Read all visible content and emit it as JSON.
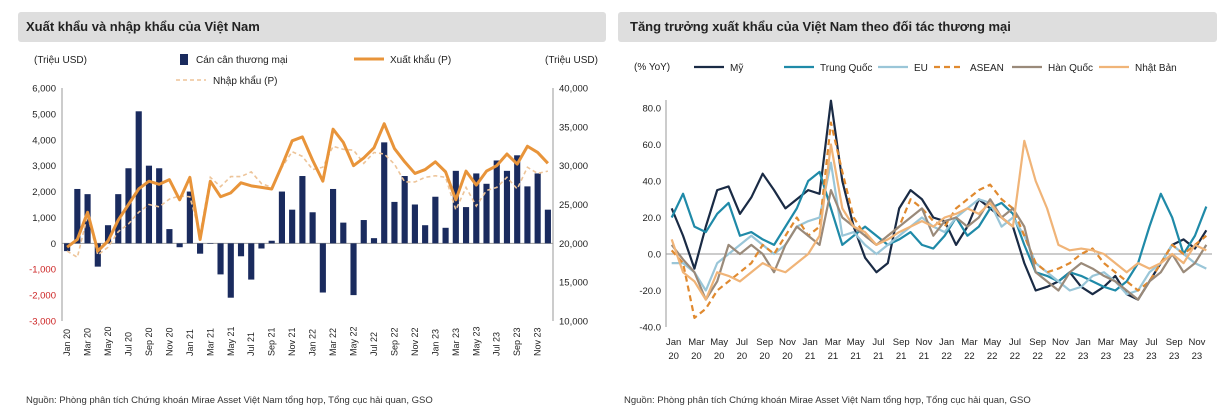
{
  "panels": {
    "left": {
      "title": "Xuất khẩu và nhập khẩu của Việt Nam",
      "source": "Nguồn: Phòng phân tích Chứng khoán Mirae Asset Việt Nam tổng hợp, Tổng cục hải quan, GSO"
    },
    "right": {
      "title": "Tăng trưởng xuất khẩu của Việt Nam theo đối tác thương mại",
      "source": "Nguồn: Phòng phân tích Chứng khoán Mirae Asset Việt Nam tổng hợp, Tổng cục hải quan, GSO"
    }
  },
  "chart_data": [
    {
      "type": "bar",
      "title": "Xuất khẩu và nhập khẩu của Việt Nam",
      "ylabel_left": "(Triệu USD)",
      "ylabel_right": "(Triệu USD)",
      "ylim_left": [
        -3000,
        6000
      ],
      "ylim_right": [
        10000,
        40000
      ],
      "yticks_left": [
        "6,000",
        "5,000",
        "4,000",
        "3,000",
        "2,000",
        "1,000",
        "0",
        "-1,000",
        "-2,000",
        "-3,000"
      ],
      "yticks_right": [
        "40,000",
        "35,000",
        "30,000",
        "25,000",
        "20,000",
        "15,000",
        "10,000"
      ],
      "x_tick_labels": [
        "Jan 20",
        "Mar 20",
        "May 20",
        "Jul 20",
        "Sep 20",
        "Nov 20",
        "Jan 21",
        "Mar 21",
        "May 21",
        "Jul 21",
        "Sep 21",
        "Nov 21",
        "Jan 22",
        "Mar 22",
        "May 22",
        "Jul 22",
        "Sep 22",
        "Nov 22",
        "Jan 23",
        "Mar 23",
        "May 23",
        "Jul 23",
        "Sep 23",
        "Nov 23"
      ],
      "legend": [
        "Cán cân thương mại",
        "Xuất khẩu (P)",
        "Nhập khẩu (P)"
      ],
      "colors": {
        "balance": "#1a2b5e",
        "export": "#e8943a",
        "import": "#edc499",
        "axis_neg": "#cc2222"
      },
      "series": [
        {
          "name": "Cán cân thương mại",
          "kind": "bar",
          "axis": "left",
          "values": [
            -300,
            2100,
            1900,
            -900,
            700,
            1900,
            2900,
            5100,
            3000,
            2900,
            550,
            -150,
            2000,
            -400,
            0,
            -1200,
            -2100,
            -500,
            -1400,
            -200,
            100,
            2000,
            1300,
            2600,
            1200,
            -1900,
            2100,
            800,
            -2000,
            900,
            200,
            3900,
            1600,
            2600,
            1500,
            700,
            1800,
            600,
            2800,
            1400,
            2700,
            2300,
            3200,
            2800,
            3400,
            2200,
            2700,
            1300
          ]
        },
        {
          "name": "Xuất khẩu (P)",
          "kind": "line",
          "axis": "right",
          "values": [
            19500,
            20500,
            24000,
            19000,
            20300,
            23000,
            25000,
            27000,
            28000,
            27600,
            28200,
            25600,
            28500,
            20500,
            28000,
            26000,
            26500,
            27800,
            27400,
            27200,
            27000,
            30000,
            33200,
            33700,
            30700,
            28000,
            34700,
            33000,
            30000,
            31000,
            32300,
            35400,
            32200,
            30500,
            29000,
            29500,
            30500,
            29200,
            25600,
            29300,
            27500,
            29300,
            30000,
            31500,
            30200,
            32500,
            31700,
            30300
          ]
        },
        {
          "name": "Nhập khẩu (P)",
          "kind": "line",
          "axis": "right",
          "values": [
            19000,
            18200,
            23600,
            18500,
            19500,
            21500,
            22500,
            24000,
            25000,
            24700,
            25700,
            26100,
            26000,
            21200,
            28500,
            27300,
            28600,
            28600,
            29200,
            27700,
            27200,
            29800,
            31800,
            31200,
            29500,
            29800,
            32500,
            32100,
            32000,
            30300,
            31700,
            31500,
            30200,
            27900,
            27900,
            28500,
            28700,
            28500,
            24300,
            27200,
            24800,
            26800,
            27200,
            28500,
            27000,
            29800,
            29000,
            29300
          ]
        }
      ]
    },
    {
      "type": "line",
      "title": "Tăng trưởng xuất khẩu của Việt Nam theo đối tác thương mại",
      "ylabel": "(% YoY)",
      "ylim": [
        -40,
        80
      ],
      "yticks": [
        "80.0",
        "60.0",
        "40.0",
        "20.0",
        "0.0",
        "-20.0",
        "-40.0"
      ],
      "x_tick_labels": [
        [
          "Jan",
          "20"
        ],
        [
          "Mar",
          "20"
        ],
        [
          "May",
          "20"
        ],
        [
          "Jul",
          "20"
        ],
        [
          "Sep",
          "20"
        ],
        [
          "Nov",
          "20"
        ],
        [
          "Jan",
          "21"
        ],
        [
          "Mar",
          "21"
        ],
        [
          "May",
          "21"
        ],
        [
          "Jul",
          "21"
        ],
        [
          "Sep",
          "21"
        ],
        [
          "Nov",
          "21"
        ],
        [
          "Jan",
          "22"
        ],
        [
          "Mar",
          "22"
        ],
        [
          "May",
          "22"
        ],
        [
          "Jul",
          "22"
        ],
        [
          "Sep",
          "22"
        ],
        [
          "Nov",
          "22"
        ],
        [
          "Jan",
          "23"
        ],
        [
          "Mar",
          "23"
        ],
        [
          "May",
          "23"
        ],
        [
          "Jul",
          "23"
        ],
        [
          "Sep",
          "23"
        ],
        [
          "Nov",
          "23"
        ]
      ],
      "series": [
        {
          "name": "Mỹ",
          "color": "#1a2b45",
          "dash": "none",
          "values": [
            25,
            10,
            -8,
            15,
            35,
            37,
            22,
            31,
            44,
            35,
            25,
            30,
            35,
            33,
            84,
            40,
            15,
            -2,
            -10,
            -5,
            25,
            35,
            30,
            20,
            18,
            5,
            15,
            30,
            25,
            20,
            15,
            -5,
            -20,
            -18,
            -15,
            -10,
            -18,
            -22,
            -18,
            -12,
            -22,
            -25,
            -15,
            -5,
            5,
            8,
            3,
            13
          ]
        },
        {
          "name": "Trung Quốc",
          "color": "#1f8aa8",
          "dash": "none",
          "values": [
            20,
            33,
            15,
            12,
            22,
            28,
            10,
            12,
            8,
            5,
            15,
            25,
            40,
            45,
            25,
            5,
            10,
            15,
            10,
            5,
            8,
            12,
            5,
            3,
            10,
            20,
            10,
            15,
            25,
            28,
            22,
            5,
            -10,
            -12,
            -15,
            -10,
            -12,
            -15,
            -18,
            -20,
            -15,
            -5,
            15,
            33,
            20,
            0,
            10,
            26
          ]
        },
        {
          "name": "EU",
          "color": "#9ac6d8",
          "dash": "none",
          "values": [
            -5,
            -5,
            -10,
            -20,
            -5,
            0,
            5,
            10,
            5,
            0,
            5,
            15,
            18,
            20,
            50,
            10,
            12,
            5,
            0,
            5,
            10,
            15,
            20,
            15,
            12,
            20,
            25,
            30,
            28,
            15,
            20,
            10,
            -5,
            -10,
            -15,
            -20,
            -18,
            -12,
            -10,
            -15,
            -22,
            -20,
            -10,
            -5,
            5,
            0,
            -5,
            -8
          ]
        },
        {
          "name": "ASEAN",
          "color": "#e08a30",
          "dash": "6,4",
          "values": [
            2,
            -5,
            -35,
            -30,
            -20,
            -15,
            -10,
            -5,
            5,
            0,
            10,
            20,
            10,
            15,
            72,
            45,
            20,
            10,
            5,
            10,
            15,
            30,
            25,
            18,
            15,
            25,
            30,
            35,
            38,
            30,
            25,
            10,
            -5,
            -10,
            -8,
            -5,
            0,
            3,
            -5,
            -10,
            -15,
            -20,
            -15,
            -5,
            5,
            0,
            5,
            10
          ]
        },
        {
          "name": "Hàn Quốc",
          "color": "#9a8a7a",
          "dash": "none",
          "values": [
            5,
            -3,
            -10,
            -25,
            -15,
            5,
            0,
            5,
            0,
            -10,
            5,
            15,
            10,
            5,
            35,
            20,
            15,
            10,
            5,
            10,
            15,
            20,
            25,
            10,
            18,
            20,
            15,
            20,
            30,
            20,
            25,
            15,
            -10,
            -15,
            -20,
            -10,
            -5,
            -8,
            -12,
            -15,
            -20,
            -25,
            -15,
            -10,
            0,
            -10,
            -5,
            5
          ]
        },
        {
          "name": "Nhật Bản",
          "color": "#f0b478",
          "dash": "none",
          "values": [
            8,
            -10,
            -15,
            -25,
            -10,
            -12,
            -15,
            -10,
            -5,
            -8,
            -10,
            -5,
            0,
            10,
            60,
            25,
            15,
            12,
            5,
            8,
            12,
            15,
            18,
            15,
            20,
            22,
            25,
            22,
            28,
            20,
            15,
            62,
            40,
            25,
            5,
            2,
            3,
            2,
            0,
            -5,
            -10,
            -5,
            -8,
            -5,
            0,
            -5,
            5,
            2
          ]
        }
      ]
    }
  ]
}
